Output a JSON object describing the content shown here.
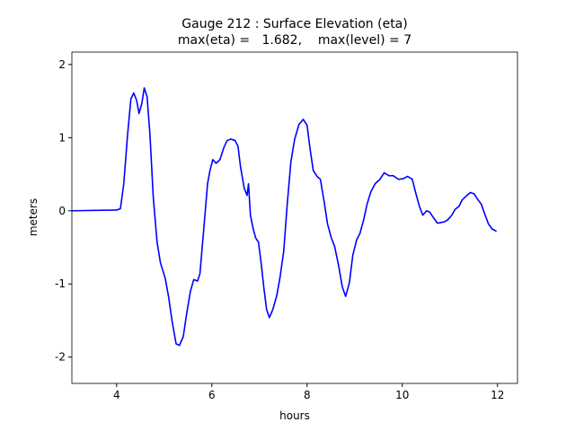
{
  "chart_data": {
    "type": "line",
    "title": "Gauge 212 : Surface Elevation (eta)",
    "subtitle": "max(eta) =   1.682,    max(level) = 7",
    "xlabel": "hours",
    "ylabel": "meters",
    "xlim": [
      3.06,
      12.42
    ],
    "ylim": [
      -2.36,
      2.17
    ],
    "xticks": [
      4,
      6,
      8,
      10,
      12
    ],
    "yticks": [
      -2,
      -1,
      0,
      1,
      2
    ],
    "series": [
      {
        "name": "eta",
        "color": "#0000ff",
        "x": [
          3.06,
          4,
          4.08,
          4.15,
          4.23,
          4.3,
          4.36,
          4.42,
          4.47,
          4.53,
          4.58,
          4.64,
          4.7,
          4.77,
          4.85,
          4.92,
          5.02,
          5.09,
          5.17,
          5.25,
          5.32,
          5.4,
          5.47,
          5.55,
          5.62,
          5.7,
          5.75,
          5.83,
          5.91,
          5.96,
          6.02,
          6.09,
          6.17,
          6.25,
          6.32,
          6.4,
          6.49,
          6.55,
          6.6,
          6.68,
          6.74,
          6.77,
          6.81,
          6.87,
          6.92,
          6.98,
          7.04,
          7.09,
          7.15,
          7.21,
          7.28,
          7.36,
          7.43,
          7.51,
          7.58,
          7.66,
          7.74,
          7.83,
          7.92,
          8.0,
          8.06,
          8.13,
          8.21,
          8.28,
          8.36,
          8.43,
          8.51,
          8.58,
          8.66,
          8.74,
          8.81,
          8.89,
          8.96,
          9.04,
          9.11,
          9.19,
          9.26,
          9.34,
          9.43,
          9.53,
          9.62,
          9.72,
          9.81,
          9.92,
          10.02,
          10.11,
          10.21,
          10.28,
          10.36,
          10.43,
          10.51,
          10.58,
          10.66,
          10.74,
          10.81,
          10.89,
          10.96,
          11.04,
          11.11,
          11.19,
          11.26,
          11.34,
          11.43,
          11.51,
          11.58,
          11.66,
          11.74,
          11.81,
          11.89,
          11.98
        ],
        "values": [
          0,
          0.01,
          0.03,
          0.37,
          1.04,
          1.53,
          1.61,
          1.51,
          1.33,
          1.47,
          1.68,
          1.56,
          1.04,
          0.18,
          -0.43,
          -0.71,
          -0.92,
          -1.17,
          -1.53,
          -1.82,
          -1.84,
          -1.72,
          -1.41,
          -1.1,
          -0.94,
          -0.96,
          -0.86,
          -0.25,
          0.37,
          0.55,
          0.7,
          0.65,
          0.7,
          0.86,
          0.96,
          0.98,
          0.96,
          0.88,
          0.61,
          0.31,
          0.21,
          0.37,
          -0.06,
          -0.25,
          -0.37,
          -0.43,
          -0.74,
          -1.04,
          -1.35,
          -1.46,
          -1.35,
          -1.17,
          -0.92,
          -0.55,
          0.06,
          0.67,
          0.98,
          1.18,
          1.25,
          1.17,
          0.86,
          0.55,
          0.47,
          0.43,
          0.12,
          -0.18,
          -0.37,
          -0.49,
          -0.74,
          -1.04,
          -1.17,
          -0.98,
          -0.61,
          -0.4,
          -0.31,
          -0.12,
          0.09,
          0.26,
          0.37,
          0.43,
          0.52,
          0.48,
          0.48,
          0.43,
          0.44,
          0.47,
          0.43,
          0.25,
          0.06,
          -0.06,
          0,
          -0.02,
          -0.1,
          -0.17,
          -0.16,
          -0.15,
          -0.12,
          -0.06,
          0.02,
          0.06,
          0.15,
          0.2,
          0.25,
          0.23,
          0.16,
          0.09,
          -0.06,
          -0.18,
          -0.25,
          -0.28
        ]
      }
    ]
  }
}
